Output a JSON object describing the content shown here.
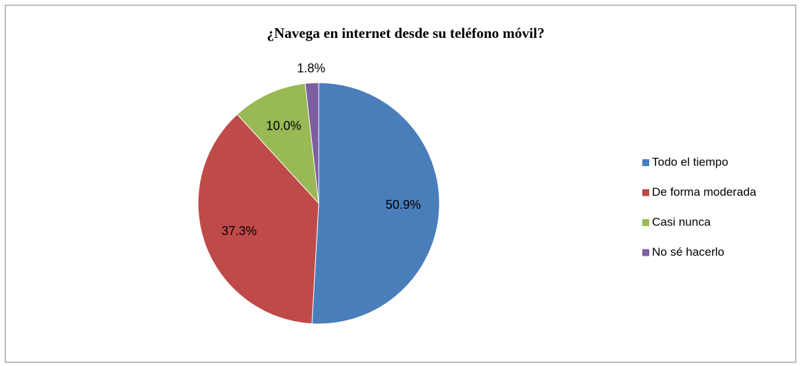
{
  "chart_data": {
    "type": "pie",
    "title": "¿Navega en internet desde su teléfono móvil?",
    "categories": [
      "Todo el tiempo",
      "De forma moderada",
      "Casi nunca",
      "No sé hacerlo"
    ],
    "values": [
      50.9,
      37.3,
      10.0,
      1.8
    ],
    "value_labels": [
      "50.9%",
      "37.3%",
      "10.0%",
      "1.8%"
    ],
    "colors": [
      "#4a7ebb",
      "#be4b48",
      "#98b954",
      "#7d5fa0"
    ],
    "legend": "right"
  }
}
